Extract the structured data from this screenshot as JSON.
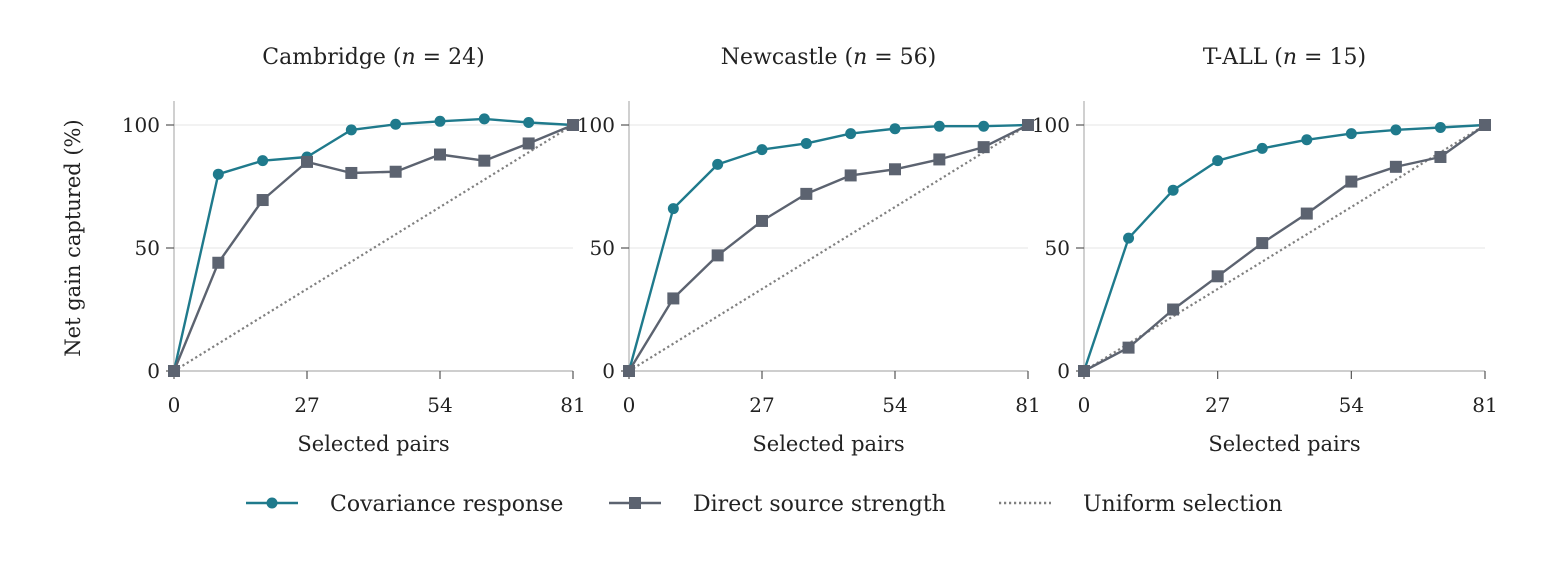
{
  "chart_data": [
    {
      "type": "line",
      "title": "Cambridge (n = 24)",
      "xlabel": "Selected pairs",
      "ylabel": "Net gain captured (%)",
      "xlim": [
        0,
        81
      ],
      "ylim": [
        0,
        110
      ],
      "xticks": [
        0,
        27,
        54,
        81
      ],
      "yticks": [
        0,
        50,
        100
      ],
      "grid": "horizontal",
      "series": [
        {
          "name": "Covariance response",
          "color": "#1f7a8c",
          "marker": "circle",
          "x": [
            0,
            9,
            18,
            27,
            36,
            45,
            54,
            63,
            72,
            81
          ],
          "y": [
            0,
            80,
            85.5,
            87,
            98,
            100.3,
            101.5,
            102.5,
            101,
            100
          ]
        },
        {
          "name": "Direct source strength",
          "color": "#5c6370",
          "marker": "square",
          "x": [
            0,
            9,
            18,
            27,
            36,
            45,
            54,
            63,
            72,
            81
          ],
          "y": [
            0,
            44,
            69.5,
            85,
            80.5,
            81,
            88,
            85.5,
            92.5,
            100
          ]
        },
        {
          "name": "Uniform selection",
          "color": "#808080",
          "marker": "none",
          "dash": "dotted",
          "x": [
            0,
            81
          ],
          "y": [
            0,
            100
          ]
        }
      ]
    },
    {
      "type": "line",
      "title": "Newcastle (n = 56)",
      "xlabel": "Selected pairs",
      "ylabel": "",
      "xlim": [
        0,
        81
      ],
      "ylim": [
        0,
        110
      ],
      "xticks": [
        0,
        27,
        54,
        81
      ],
      "yticks": [
        0,
        50,
        100
      ],
      "grid": "horizontal",
      "series": [
        {
          "name": "Covariance response",
          "color": "#1f7a8c",
          "marker": "circle",
          "x": [
            0,
            9,
            18,
            27,
            36,
            45,
            54,
            63,
            72,
            81
          ],
          "y": [
            0,
            66,
            84,
            90,
            92.5,
            96.5,
            98.5,
            99.5,
            99.5,
            100
          ]
        },
        {
          "name": "Direct source strength",
          "color": "#5c6370",
          "marker": "square",
          "x": [
            0,
            9,
            18,
            27,
            36,
            45,
            54,
            63,
            72,
            81
          ],
          "y": [
            0,
            29.5,
            47,
            61,
            72,
            79.5,
            82,
            86,
            91,
            100
          ]
        },
        {
          "name": "Uniform selection",
          "color": "#808080",
          "marker": "none",
          "dash": "dotted",
          "x": [
            0,
            81
          ],
          "y": [
            0,
            100
          ]
        }
      ]
    },
    {
      "type": "line",
      "title": "T-ALL (n = 15)",
      "xlabel": "Selected pairs",
      "ylabel": "",
      "xlim": [
        0,
        81
      ],
      "ylim": [
        0,
        110
      ],
      "xticks": [
        0,
        27,
        54,
        81
      ],
      "yticks": [
        0,
        50,
        100
      ],
      "grid": "horizontal",
      "series": [
        {
          "name": "Covariance response",
          "color": "#1f7a8c",
          "marker": "circle",
          "x": [
            0,
            9,
            18,
            27,
            36,
            45,
            54,
            63,
            72,
            81
          ],
          "y": [
            0,
            54,
            73.5,
            85.5,
            90.5,
            94,
            96.5,
            98,
            99,
            100
          ]
        },
        {
          "name": "Direct source strength",
          "color": "#5c6370",
          "marker": "square",
          "x": [
            0,
            9,
            18,
            27,
            36,
            45,
            54,
            63,
            72,
            81
          ],
          "y": [
            0,
            9.5,
            25,
            38.5,
            52,
            64,
            77,
            83,
            87,
            100
          ]
        },
        {
          "name": "Uniform selection",
          "color": "#808080",
          "marker": "none",
          "dash": "dotted",
          "x": [
            0,
            81
          ],
          "y": [
            0,
            100
          ]
        }
      ]
    }
  ],
  "legend": {
    "placement": "bottom-center",
    "entries": [
      {
        "label": "Covariance response",
        "color": "#1f7a8c",
        "marker": "circle"
      },
      {
        "label": "Direct source strength",
        "color": "#5c6370",
        "marker": "square"
      },
      {
        "label": "Uniform selection",
        "color": "#808080",
        "marker": "none",
        "dash": "dotted"
      }
    ]
  }
}
